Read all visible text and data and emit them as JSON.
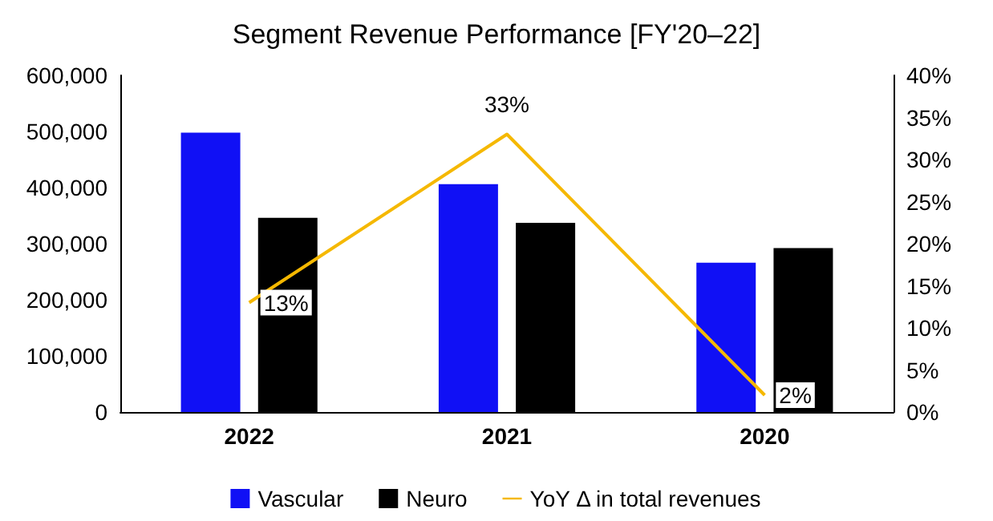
{
  "chart_data": {
    "type": "bar",
    "title": "Segment Revenue Performance [FY'20–22]",
    "categories": [
      "2022",
      "2021",
      "2020"
    ],
    "series": [
      {
        "name": "Vascular",
        "color": "#1010f5",
        "values": [
          498000,
          406000,
          266000
        ]
      },
      {
        "name": "Neuro",
        "color": "#000000",
        "values": [
          346000,
          337000,
          292000
        ]
      },
      {
        "name": "YoY Δ in total revenues",
        "type": "line",
        "axis": "y2",
        "color": "#f5b800",
        "values": [
          13,
          33,
          2
        ],
        "value_labels": [
          "13%",
          "33%",
          "2%"
        ]
      }
    ],
    "ylim": [
      0,
      600000
    ],
    "yticks": [
      0,
      {
        "value": 100000,
        "label": "100,000"
      },
      {
        "value": 200000,
        "label": "200,000"
      },
      {
        "value": 300000,
        "label": "300,000"
      },
      {
        "value": 400000,
        "label": "400,000"
      },
      {
        "value": 500000,
        "label": "500,000"
      },
      {
        "value": 600000,
        "label": "600,000"
      }
    ],
    "y2lim": [
      0,
      40
    ],
    "y2ticks": [
      {
        "value": 0,
        "label": "0%"
      },
      {
        "value": 5,
        "label": "5%"
      },
      {
        "value": 10,
        "label": "10%"
      },
      {
        "value": 15,
        "label": "15%"
      },
      {
        "value": 20,
        "label": "20%"
      },
      {
        "value": 25,
        "label": "25%"
      },
      {
        "value": 30,
        "label": "30%"
      },
      {
        "value": 35,
        "label": "35%"
      },
      {
        "value": 40,
        "label": "40%"
      }
    ],
    "grid": false,
    "legend": "bottom",
    "marker": "none"
  }
}
